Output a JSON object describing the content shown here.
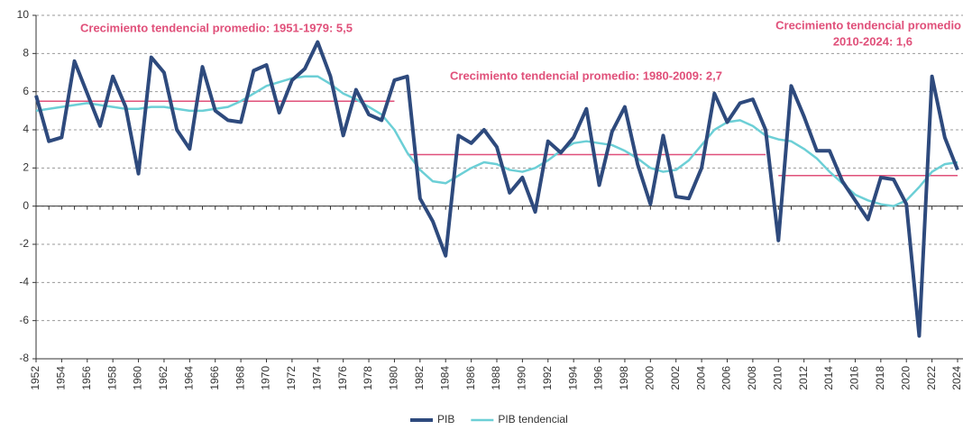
{
  "chart_data": {
    "type": "line",
    "x": [
      1952,
      1953,
      1954,
      1955,
      1956,
      1957,
      1958,
      1959,
      1960,
      1961,
      1962,
      1963,
      1964,
      1965,
      1966,
      1967,
      1968,
      1969,
      1970,
      1971,
      1972,
      1973,
      1974,
      1975,
      1976,
      1977,
      1978,
      1979,
      1980,
      1981,
      1982,
      1983,
      1984,
      1985,
      1986,
      1987,
      1988,
      1989,
      1990,
      1991,
      1992,
      1993,
      1994,
      1995,
      1996,
      1997,
      1998,
      1999,
      2000,
      2001,
      2002,
      2003,
      2004,
      2005,
      2006,
      2007,
      2008,
      2009,
      2010,
      2011,
      2012,
      2013,
      2014,
      2015,
      2016,
      2017,
      2018,
      2019,
      2020,
      2021,
      2022,
      2023,
      2024
    ],
    "series": [
      {
        "name": "PIB",
        "color": "#2e4a7d",
        "values": [
          5.8,
          3.4,
          3.6,
          7.6,
          5.9,
          4.2,
          6.8,
          5.2,
          1.7,
          7.8,
          7.0,
          4.0,
          3.0,
          7.3,
          5.0,
          4.5,
          4.4,
          7.1,
          7.4,
          4.9,
          6.6,
          7.2,
          8.6,
          6.8,
          3.7,
          6.1,
          4.8,
          4.5,
          6.6,
          6.8,
          0.4,
          -0.8,
          -2.6,
          3.7,
          3.3,
          4.0,
          3.1,
          0.7,
          1.5,
          -0.3,
          3.4,
          2.8,
          3.6,
          5.1,
          1.1,
          3.9,
          5.2,
          2.2,
          0.1,
          3.7,
          0.5,
          0.4,
          2.0,
          5.9,
          4.4,
          5.4,
          5.6,
          4.0,
          -1.8,
          6.3,
          4.7,
          2.9,
          2.9,
          1.3,
          0.3,
          -0.7,
          1.5,
          1.4,
          0.1,
          -6.8,
          6.8,
          3.6,
          1.9
        ]
      },
      {
        "name": "PIB tendencial",
        "color": "#6ccfd6",
        "values": [
          5.0,
          5.1,
          5.2,
          5.3,
          5.4,
          5.3,
          5.2,
          5.1,
          5.1,
          5.2,
          5.2,
          5.1,
          5.0,
          5.0,
          5.1,
          5.2,
          5.5,
          5.9,
          6.3,
          6.5,
          6.7,
          6.8,
          6.8,
          6.4,
          5.9,
          5.6,
          5.2,
          4.8,
          4.0,
          2.8,
          1.9,
          1.3,
          1.2,
          1.6,
          2.0,
          2.3,
          2.2,
          1.9,
          1.8,
          2.0,
          2.4,
          2.9,
          3.3,
          3.4,
          3.3,
          3.2,
          2.9,
          2.5,
          2.0,
          1.8,
          1.9,
          2.4,
          3.2,
          4.0,
          4.4,
          4.5,
          4.2,
          3.7,
          3.5,
          3.4,
          3.0,
          2.5,
          1.8,
          1.2,
          0.6,
          0.3,
          0.1,
          0.0,
          0.3,
          1.0,
          1.8,
          2.2,
          2.3
        ]
      }
    ],
    "xlim": [
      1952,
      2024
    ],
    "xticks": [
      1952,
      1954,
      1956,
      1958,
      1960,
      1962,
      1964,
      1966,
      1968,
      1970,
      1972,
      1974,
      1976,
      1978,
      1980,
      1982,
      1984,
      1986,
      1988,
      1990,
      1992,
      1994,
      1996,
      1998,
      2000,
      2002,
      2004,
      2006,
      2008,
      2010,
      2012,
      2014,
      2016,
      2018,
      2020,
      2022,
      2024
    ],
    "ylim": [
      -8,
      10
    ],
    "yticks": [
      -8,
      -6,
      -4,
      -2,
      0,
      2,
      4,
      6,
      8,
      10
    ],
    "grid": true,
    "annotations": [
      {
        "lines": [
          "Crecimiento tendencial promedio: 1951-1979: 5,5"
        ],
        "value": 5.5,
        "x_start": 1952,
        "x_end": 1980,
        "color": "#e0507a"
      },
      {
        "lines": [
          "Crecimiento tendencial promedio: 1980-2009: 2,7"
        ],
        "value": 2.7,
        "x_start": 1981,
        "x_end": 2009,
        "color": "#e0507a"
      },
      {
        "lines": [
          "Crecimiento tendencial promedio",
          "2010-2024: 1,6"
        ],
        "value": 1.6,
        "x_start": 2010,
        "x_end": 2024,
        "color": "#e0507a"
      }
    ],
    "legend": "bottom"
  }
}
